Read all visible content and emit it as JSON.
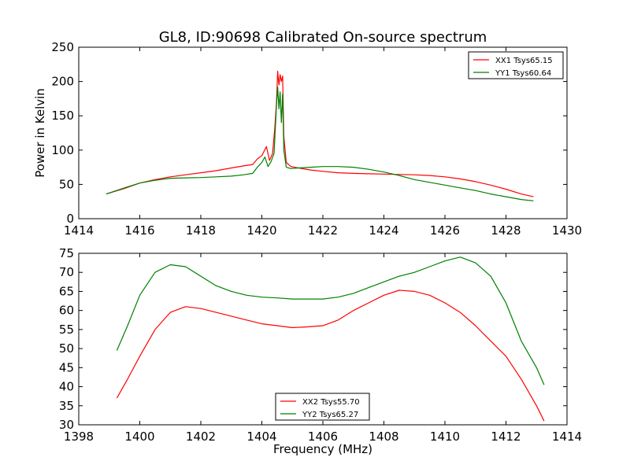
{
  "figure": {
    "title": "GL8, ID:90698 Calibrated On-source spectrum",
    "xlabel": "Frequency (MHz)",
    "ylabel": "Power in Kelvin"
  },
  "chart_data": [
    {
      "type": "line",
      "title": "GL8, ID:90698 Calibrated On-source spectrum",
      "xlabel": "",
      "ylabel": "Power in Kelvin",
      "xlim": [
        1414,
        1430
      ],
      "ylim": [
        0,
        250
      ],
      "xticks": [
        1414,
        1416,
        1418,
        1420,
        1422,
        1424,
        1426,
        1428,
        1430
      ],
      "yticks": [
        0,
        50,
        100,
        150,
        200,
        250
      ],
      "grid": false,
      "legend_position": "top-right",
      "series": [
        {
          "name": "XX1 Tsys65.15",
          "color": "#ff0000",
          "x": [
            1414.9,
            1415.5,
            1416.0,
            1416.5,
            1417.0,
            1417.5,
            1418.0,
            1418.5,
            1419.0,
            1419.4,
            1419.7,
            1419.85,
            1420.0,
            1420.15,
            1420.25,
            1420.35,
            1420.42,
            1420.48,
            1420.52,
            1420.56,
            1420.6,
            1420.64,
            1420.68,
            1420.72,
            1420.8,
            1420.95,
            1421.2,
            1421.6,
            1422.0,
            1422.5,
            1423.0,
            1423.5,
            1424.0,
            1424.5,
            1425.0,
            1425.5,
            1426.0,
            1426.5,
            1427.0,
            1427.5,
            1428.0,
            1428.5,
            1428.9
          ],
          "y": [
            36,
            44,
            52,
            57,
            61,
            64,
            67,
            70,
            74,
            77,
            79,
            87,
            92,
            105,
            85,
            95,
            130,
            170,
            215,
            195,
            210,
            200,
            208,
            120,
            82,
            76,
            74,
            71,
            69,
            67,
            66,
            65.5,
            65,
            64.5,
            64,
            63,
            61,
            58,
            54,
            49,
            43,
            36,
            32
          ]
        },
        {
          "name": "YY1 Tsys60.64",
          "color": "#008000",
          "x": [
            1414.9,
            1415.5,
            1416.0,
            1416.5,
            1417.0,
            1417.5,
            1418.0,
            1418.5,
            1419.0,
            1419.4,
            1419.7,
            1419.85,
            1420.0,
            1420.1,
            1420.2,
            1420.3,
            1420.4,
            1420.48,
            1420.52,
            1420.56,
            1420.6,
            1420.64,
            1420.68,
            1420.72,
            1420.8,
            1420.95,
            1421.2,
            1421.6,
            1422.0,
            1422.5,
            1423.0,
            1423.5,
            1424.0,
            1424.5,
            1425.0,
            1425.5,
            1426.0,
            1426.5,
            1427.0,
            1427.5,
            1428.0,
            1428.5,
            1428.9
          ],
          "y": [
            36,
            45,
            52,
            56,
            59,
            59.5,
            60,
            61,
            62,
            64,
            66,
            75,
            82,
            90,
            76,
            83,
            95,
            165,
            192,
            160,
            185,
            140,
            182,
            100,
            75,
            73,
            74,
            75,
            76,
            76,
            75,
            72,
            68,
            63,
            57,
            53,
            49,
            45,
            41,
            36,
            32,
            28,
            26
          ]
        }
      ]
    },
    {
      "type": "line",
      "title": "",
      "xlabel": "Frequency (MHz)",
      "ylabel": "",
      "xlim": [
        1398,
        1414
      ],
      "ylim": [
        30,
        75
      ],
      "xticks": [
        1398,
        1400,
        1402,
        1404,
        1406,
        1408,
        1410,
        1412,
        1414
      ],
      "yticks": [
        30,
        35,
        40,
        45,
        50,
        55,
        60,
        65,
        70,
        75
      ],
      "grid": false,
      "legend_position": "bottom-center",
      "series": [
        {
          "name": "XX2 Tsys55.70",
          "color": "#ff0000",
          "x": [
            1399.25,
            1399.6,
            1400.0,
            1400.5,
            1401.0,
            1401.5,
            1402.0,
            1402.5,
            1403.0,
            1403.5,
            1404.0,
            1404.5,
            1405.0,
            1405.5,
            1406.0,
            1406.5,
            1407.0,
            1407.5,
            1408.0,
            1408.5,
            1409.0,
            1409.5,
            1410.0,
            1410.5,
            1411.0,
            1411.5,
            1412.0,
            1412.5,
            1413.0,
            1413.25
          ],
          "y": [
            37,
            42,
            48,
            55,
            59.5,
            61,
            60.5,
            59.5,
            58.5,
            57.5,
            56.5,
            56,
            55.5,
            55.7,
            56,
            57.5,
            60,
            62,
            64,
            65.3,
            65,
            64,
            62,
            59.5,
            56,
            52,
            48,
            42,
            35,
            31
          ]
        },
        {
          "name": "YY2 Tsys65.27",
          "color": "#008000",
          "x": [
            1399.25,
            1399.6,
            1400.0,
            1400.5,
            1401.0,
            1401.5,
            1402.0,
            1402.5,
            1403.0,
            1403.5,
            1404.0,
            1404.5,
            1405.0,
            1405.5,
            1406.0,
            1406.5,
            1407.0,
            1407.5,
            1408.0,
            1408.5,
            1409.0,
            1409.5,
            1410.0,
            1410.5,
            1411.0,
            1411.5,
            1412.0,
            1412.5,
            1413.0,
            1413.25
          ],
          "y": [
            49.5,
            56,
            64,
            70,
            72,
            71.5,
            69,
            66.5,
            65,
            64,
            63.5,
            63.3,
            63,
            63,
            63,
            63.5,
            64.5,
            66,
            67.5,
            69,
            70,
            71.5,
            73,
            74,
            72.5,
            69,
            62,
            52,
            45,
            40.5
          ]
        }
      ]
    }
  ]
}
